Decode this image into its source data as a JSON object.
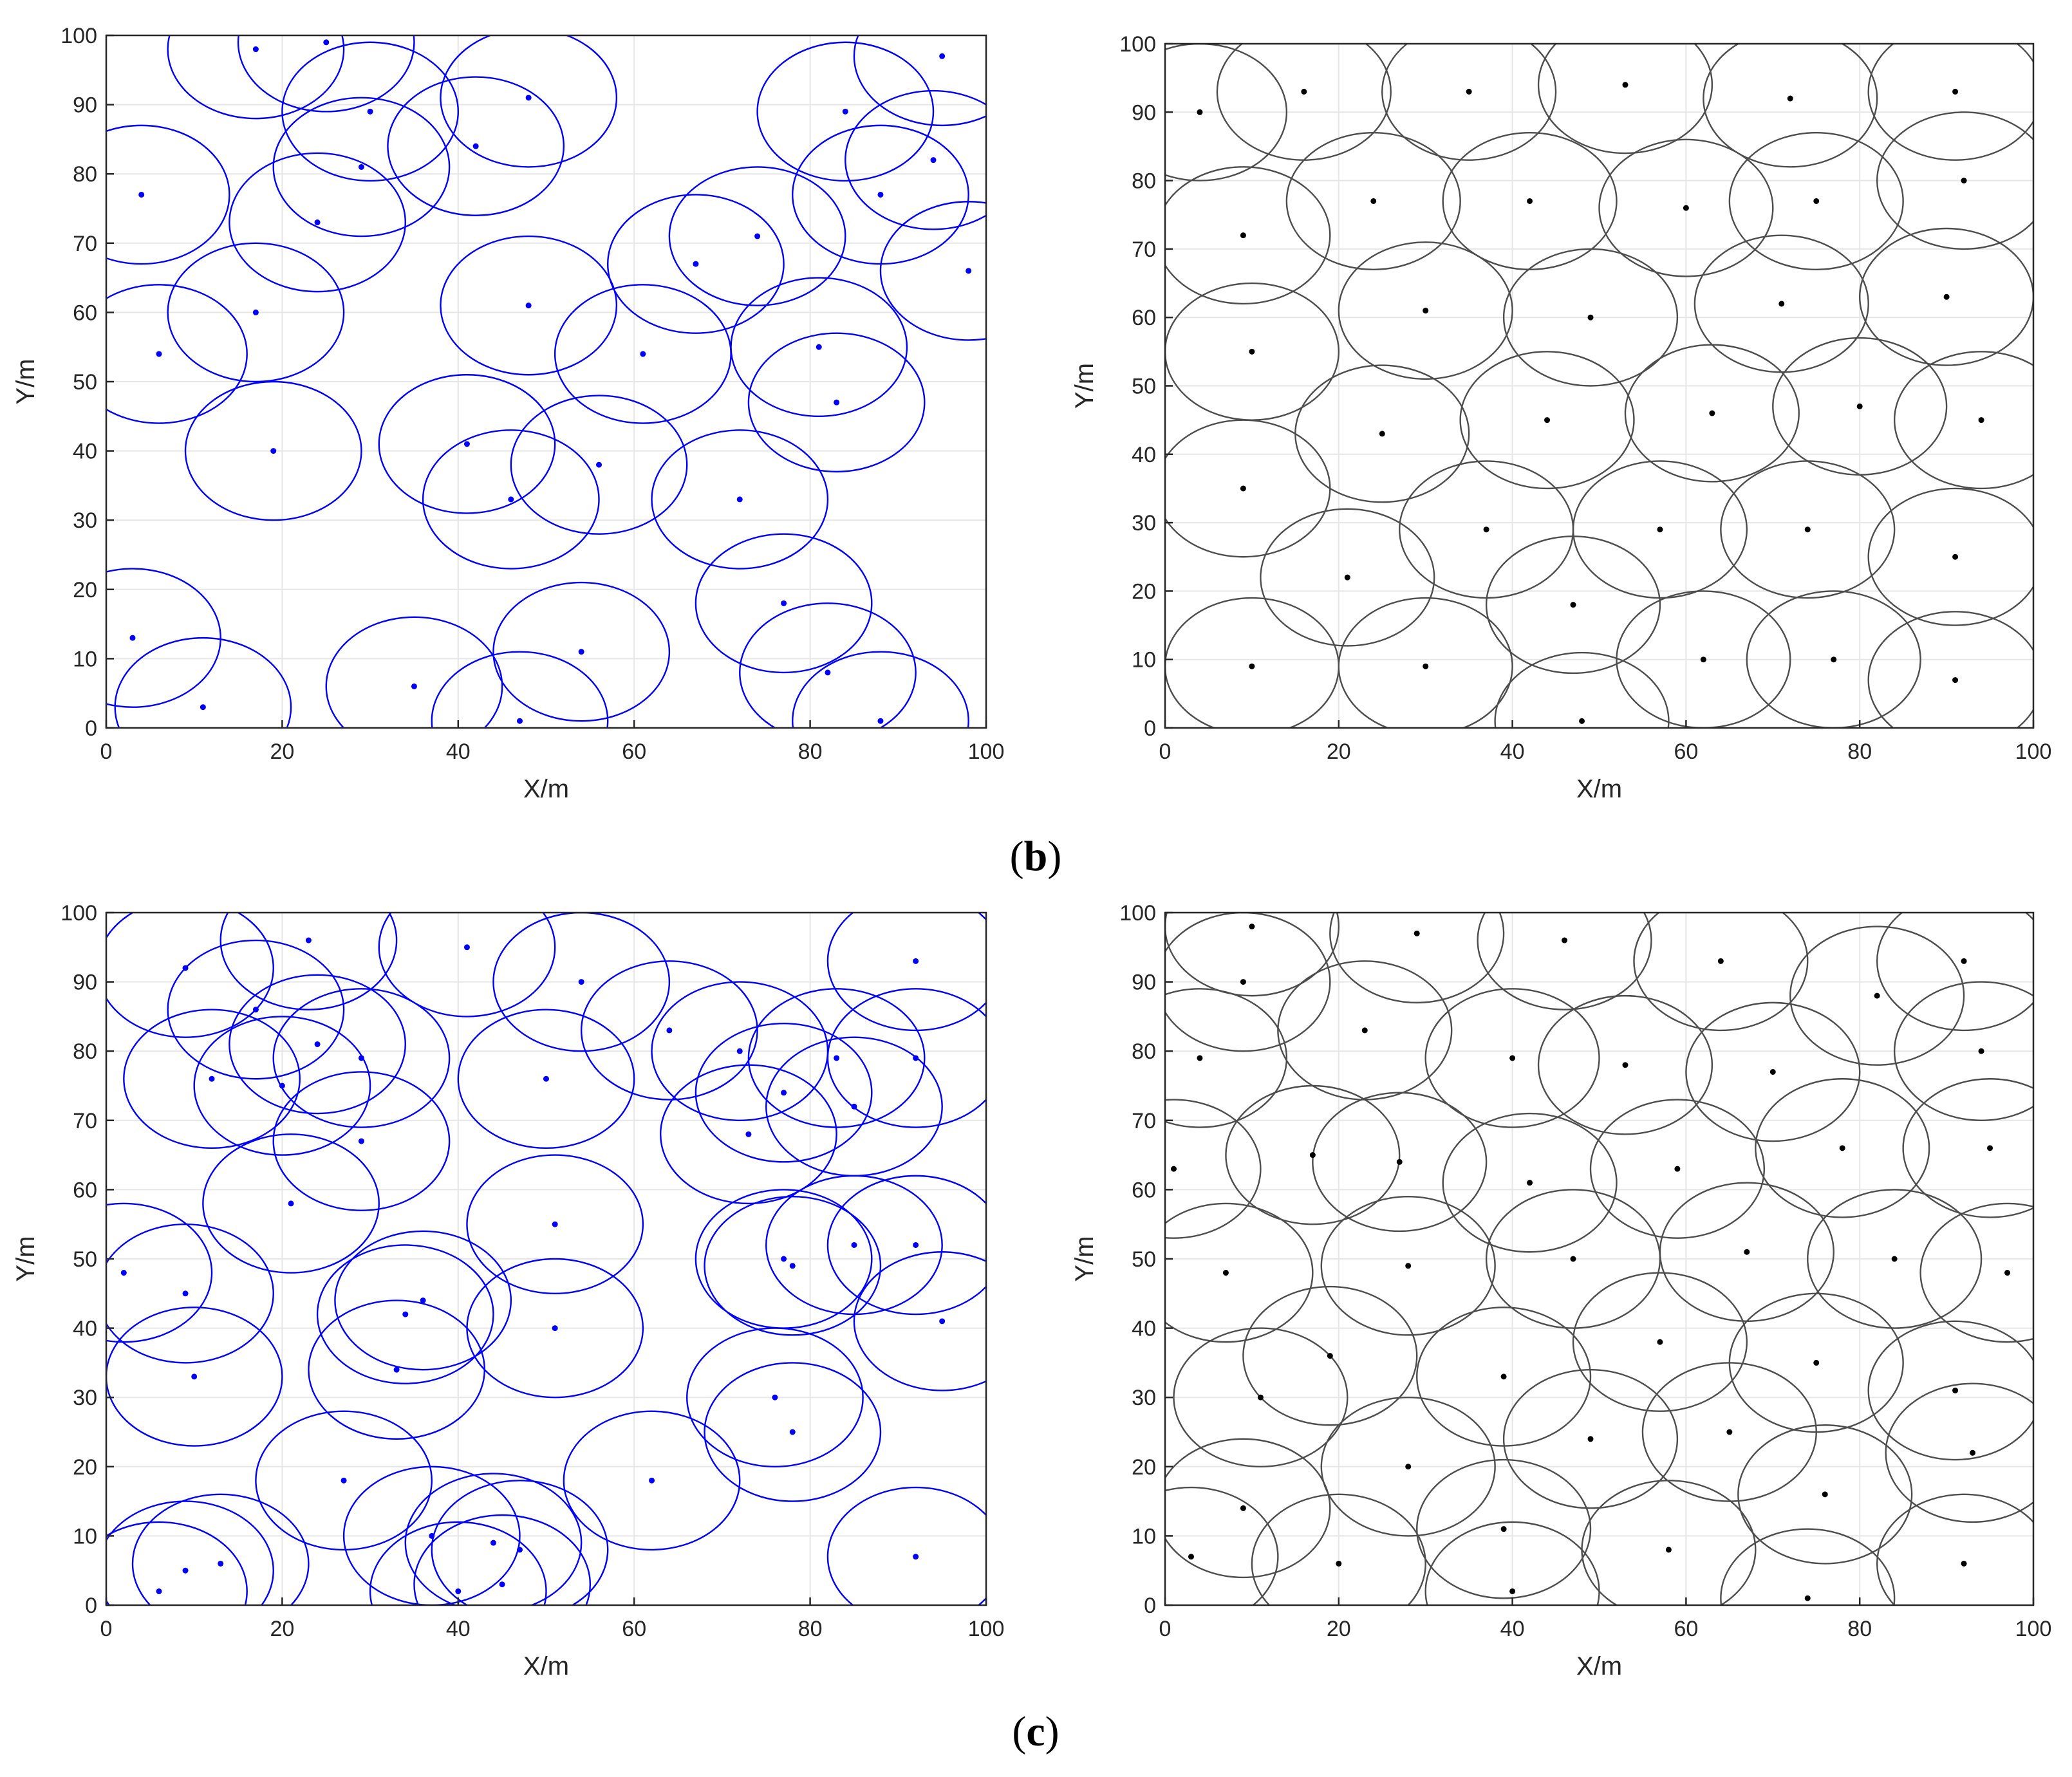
{
  "figure": {
    "captions": [
      {
        "open": "(",
        "letter": "b",
        "close": ")"
      },
      {
        "open": "(",
        "letter": "c",
        "close": ")"
      }
    ]
  },
  "chart_data": [
    {
      "type": "scatter",
      "xlabel": "X/m",
      "ylabel": "Y/m",
      "xlim": [
        0,
        100
      ],
      "ylim": [
        0,
        100
      ],
      "xticks": [
        0,
        20,
        40,
        60,
        80,
        100
      ],
      "yticks": [
        0,
        10,
        20,
        30,
        40,
        50,
        60,
        70,
        80,
        90,
        100
      ],
      "grid": true,
      "color": "#0000ff",
      "coverage_radius": 10,
      "points": [
        [
          17,
          98
        ],
        [
          25,
          99
        ],
        [
          30,
          89
        ],
        [
          48,
          91
        ],
        [
          42,
          84
        ],
        [
          29,
          81
        ],
        [
          4,
          77
        ],
        [
          24,
          73
        ],
        [
          17,
          60
        ],
        [
          6,
          54
        ],
        [
          19,
          40
        ],
        [
          48,
          61
        ],
        [
          67,
          67
        ],
        [
          74,
          71
        ],
        [
          84,
          89
        ],
        [
          95,
          97
        ],
        [
          94,
          82
        ],
        [
          88,
          77
        ],
        [
          98,
          66
        ],
        [
          61,
          54
        ],
        [
          81,
          55
        ],
        [
          83,
          47
        ],
        [
          41,
          41
        ],
        [
          46,
          33
        ],
        [
          56,
          38
        ],
        [
          72,
          33
        ],
        [
          77,
          18
        ],
        [
          3,
          13
        ],
        [
          11,
          3
        ],
        [
          35,
          6
        ],
        [
          47,
          1
        ],
        [
          54,
          11
        ],
        [
          82,
          8
        ],
        [
          88,
          1
        ]
      ]
    },
    {
      "type": "scatter",
      "xlabel": "X/m",
      "ylabel": "Y/m",
      "xlim": [
        0,
        100
      ],
      "ylim": [
        0,
        100
      ],
      "xticks": [
        0,
        20,
        40,
        60,
        80,
        100
      ],
      "yticks": [
        0,
        10,
        20,
        30,
        40,
        50,
        60,
        70,
        80,
        90,
        100
      ],
      "grid": true,
      "color": "#4d4d4d",
      "coverage_radius": 10,
      "points": [
        [
          4,
          90
        ],
        [
          16,
          93
        ],
        [
          35,
          93
        ],
        [
          53,
          94
        ],
        [
          72,
          92
        ],
        [
          91,
          93
        ],
        [
          9,
          72
        ],
        [
          24,
          77
        ],
        [
          42,
          77
        ],
        [
          60,
          76
        ],
        [
          75,
          77
        ],
        [
          92,
          80
        ],
        [
          30,
          61
        ],
        [
          49,
          60
        ],
        [
          71,
          62
        ],
        [
          90,
          63
        ],
        [
          10,
          55
        ],
        [
          25,
          43
        ],
        [
          44,
          45
        ],
        [
          63,
          46
        ],
        [
          80,
          47
        ],
        [
          94,
          45
        ],
        [
          9,
          35
        ],
        [
          21,
          22
        ],
        [
          37,
          29
        ],
        [
          47,
          18
        ],
        [
          57,
          29
        ],
        [
          74,
          29
        ],
        [
          91,
          25
        ],
        [
          10,
          9
        ],
        [
          30,
          9
        ],
        [
          48,
          1
        ],
        [
          62,
          10
        ],
        [
          77,
          10
        ],
        [
          91,
          7
        ]
      ]
    },
    {
      "type": "scatter",
      "xlabel": "X/m",
      "ylabel": "Y/m",
      "xlim": [
        0,
        100
      ],
      "ylim": [
        0,
        100
      ],
      "xticks": [
        0,
        20,
        40,
        60,
        80,
        100
      ],
      "yticks": [
        0,
        10,
        20,
        30,
        40,
        50,
        60,
        70,
        80,
        90,
        100
      ],
      "grid": true,
      "color": "#0000ff",
      "coverage_radius": 10,
      "points": [
        [
          9,
          92
        ],
        [
          23,
          96
        ],
        [
          17,
          86
        ],
        [
          41,
          95
        ],
        [
          54,
          90
        ],
        [
          92,
          93
        ],
        [
          24,
          81
        ],
        [
          29,
          79
        ],
        [
          12,
          76
        ],
        [
          20,
          75
        ],
        [
          29,
          67
        ],
        [
          50,
          76
        ],
        [
          64,
          83
        ],
        [
          72,
          80
        ],
        [
          73,
          68
        ],
        [
          77,
          74
        ],
        [
          83,
          79
        ],
        [
          85,
          72
        ],
        [
          92,
          79
        ],
        [
          21,
          58
        ],
        [
          51,
          55
        ],
        [
          2,
          48
        ],
        [
          9,
          45
        ],
        [
          10,
          33
        ],
        [
          34,
          42
        ],
        [
          36,
          44
        ],
        [
          33,
          34
        ],
        [
          51,
          40
        ],
        [
          77,
          50
        ],
        [
          78,
          49
        ],
        [
          85,
          52
        ],
        [
          92,
          52
        ],
        [
          95,
          41
        ],
        [
          76,
          30
        ],
        [
          78,
          25
        ],
        [
          27,
          18
        ],
        [
          62,
          18
        ],
        [
          6,
          2
        ],
        [
          9,
          5
        ],
        [
          13,
          6
        ],
        [
          37,
          10
        ],
        [
          44,
          9
        ],
        [
          45,
          3
        ],
        [
          47,
          8
        ],
        [
          40,
          2
        ],
        [
          92,
          7
        ]
      ]
    },
    {
      "type": "scatter",
      "xlabel": "X/m",
      "ylabel": "Y/m",
      "xlim": [
        0,
        100
      ],
      "ylim": [
        0,
        100
      ],
      "xticks": [
        0,
        20,
        40,
        60,
        80,
        100
      ],
      "yticks": [
        0,
        10,
        20,
        30,
        40,
        50,
        60,
        70,
        80,
        90,
        100
      ],
      "grid": true,
      "color": "#4d4d4d",
      "coverage_radius": 10,
      "points": [
        [
          10,
          98
        ],
        [
          29,
          97
        ],
        [
          46,
          96
        ],
        [
          64,
          93
        ],
        [
          82,
          88
        ],
        [
          92,
          93
        ],
        [
          9,
          90
        ],
        [
          4,
          79
        ],
        [
          23,
          83
        ],
        [
          40,
          79
        ],
        [
          53,
          78
        ],
        [
          70,
          77
        ],
        [
          94,
          80
        ],
        [
          1,
          63
        ],
        [
          17,
          65
        ],
        [
          27,
          64
        ],
        [
          42,
          61
        ],
        [
          59,
          63
        ],
        [
          78,
          66
        ],
        [
          95,
          66
        ],
        [
          7,
          48
        ],
        [
          28,
          49
        ],
        [
          47,
          50
        ],
        [
          67,
          51
        ],
        [
          84,
          50
        ],
        [
          97,
          48
        ],
        [
          19,
          36
        ],
        [
          39,
          33
        ],
        [
          57,
          38
        ],
        [
          75,
          35
        ],
        [
          11,
          30
        ],
        [
          28,
          20
        ],
        [
          49,
          24
        ],
        [
          65,
          25
        ],
        [
          91,
          31
        ],
        [
          93,
          22
        ],
        [
          76,
          16
        ],
        [
          9,
          14
        ],
        [
          3,
          7
        ],
        [
          20,
          6
        ],
        [
          39,
          11
        ],
        [
          40,
          2
        ],
        [
          58,
          8
        ],
        [
          74,
          1
        ],
        [
          92,
          6
        ]
      ]
    }
  ]
}
